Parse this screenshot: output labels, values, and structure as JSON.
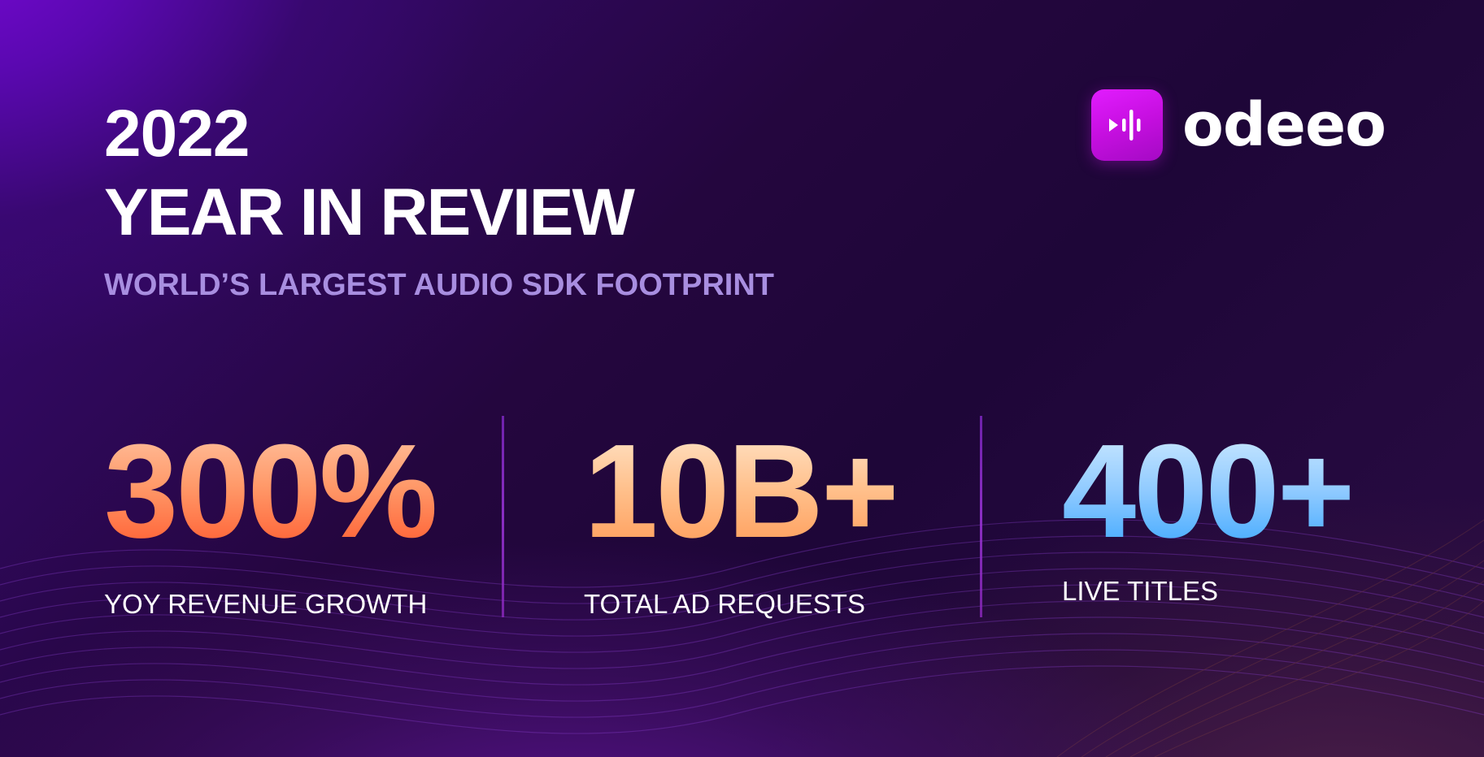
{
  "header": {
    "year": "2022",
    "title": "YEAR IN REVIEW",
    "subtitle": "WORLD’S LARGEST AUDIO SDK FOOTPRINT"
  },
  "logo": {
    "text": "odeeo",
    "icon": "audio-play-waveform-icon",
    "color": "#d414f5"
  },
  "stats": [
    {
      "value": "300%",
      "label": "YOY REVENUE GROWTH",
      "color": "#ff7a45"
    },
    {
      "value": "10B+",
      "label": "TOTAL AD REQUESTS",
      "color": "#ffb070"
    },
    {
      "value": "400+",
      "label": "LIVE TITLES",
      "color": "#5ab8ff"
    }
  ],
  "colors": {
    "background": "#24063e",
    "accent_purple": "#7a08d8",
    "subtitle": "#a88ee0"
  }
}
